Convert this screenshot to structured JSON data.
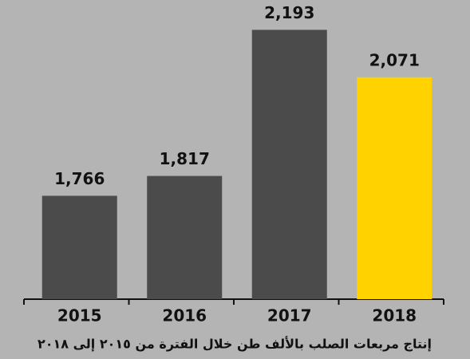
{
  "chart_data": {
    "type": "bar",
    "title": "إنتاج مربعات الصلب بالألف طن خلال الفترة من ٢٠١٥ إلى ٢٠١٨",
    "categories": [
      "2015",
      "2016",
      "2017",
      "2018"
    ],
    "values": [
      1766,
      1817,
      2193,
      2071
    ],
    "value_labels": [
      "1,766",
      "1,817",
      "2,193",
      "2,071"
    ],
    "colors": [
      "#4b4b4b",
      "#4b4b4b",
      "#4b4b4b",
      "#ffd200"
    ],
    "ylim": [
      1500,
      2200
    ]
  }
}
